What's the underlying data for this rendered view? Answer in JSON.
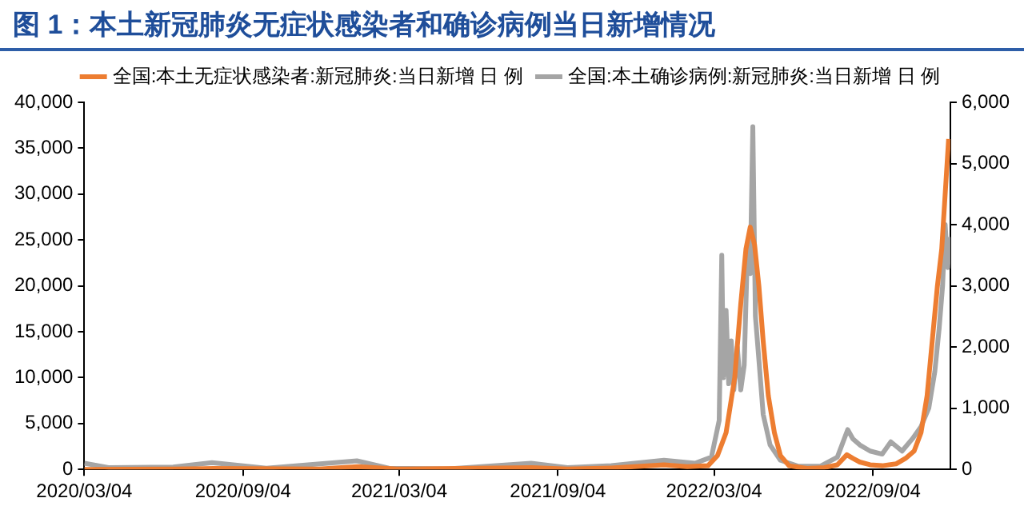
{
  "chart_data": {
    "type": "line",
    "title": "图 1：本土新冠肺炎无症状感染者和确诊病例当日新增情况",
    "legend": "top",
    "grid": false,
    "marker": "none",
    "line_style": "solid",
    "xlim": [
      "2020-03-04",
      "2022-12-03"
    ],
    "xticks": [
      {
        "value": "2020-03-04",
        "label": "2020/03/04"
      },
      {
        "value": "2020-09-04",
        "label": "2020/09/04"
      },
      {
        "value": "2021-03-04",
        "label": "2021/03/04"
      },
      {
        "value": "2021-09-04",
        "label": "2021/09/04"
      },
      {
        "value": "2022-03-04",
        "label": "2022/03/04"
      },
      {
        "value": "2022-09-04",
        "label": "2022/09/04"
      }
    ],
    "ylim": [
      0,
      40000
    ],
    "yticks": [
      0,
      {
        "value": 5000,
        "label": "5,000"
      },
      {
        "value": 10000,
        "label": "10,000"
      },
      {
        "value": 15000,
        "label": "15,000"
      },
      {
        "value": 20000,
        "label": "20,000"
      },
      {
        "value": 25000,
        "label": "25,000"
      },
      {
        "value": 30000,
        "label": "30,000"
      },
      {
        "value": 35000,
        "label": "35,000"
      },
      {
        "value": 40000,
        "label": "40,000"
      }
    ],
    "y2lim": [
      0,
      6000
    ],
    "y2ticks": [
      0,
      {
        "value": 1000,
        "label": "1,000"
      },
      {
        "value": 2000,
        "label": "2,000"
      },
      {
        "value": 3000,
        "label": "3,000"
      },
      {
        "value": 4000,
        "label": "4,000"
      },
      {
        "value": 5000,
        "label": "5,000"
      },
      {
        "value": 6000,
        "label": "6,000"
      }
    ],
    "series": [
      {
        "name": "全国:本土无症状感染者:新冠肺炎:当日新增 日 例",
        "color": "#ed7d31",
        "axis": "y",
        "x": [
          "2020-03-04",
          "2020-06-15",
          "2020-08-01",
          "2020-12-01",
          "2021-01-15",
          "2021-03-01",
          "2021-08-05",
          "2021-09-15",
          "2021-11-05",
          "2022-01-05",
          "2022-02-01",
          "2022-02-25",
          "2022-03-08",
          "2022-03-18",
          "2022-03-28",
          "2022-04-04",
          "2022-04-10",
          "2022-04-15",
          "2022-04-20",
          "2022-04-25",
          "2022-04-30",
          "2022-05-06",
          "2022-05-13",
          "2022-05-20",
          "2022-05-30",
          "2022-06-20",
          "2022-07-10",
          "2022-07-25",
          "2022-08-05",
          "2022-08-12",
          "2022-08-20",
          "2022-09-01",
          "2022-09-15",
          "2022-10-01",
          "2022-10-12",
          "2022-10-22",
          "2022-10-30",
          "2022-11-06",
          "2022-11-12",
          "2022-11-18",
          "2022-11-23",
          "2022-11-27",
          "2022-12-01"
        ],
        "values": [
          0,
          50,
          100,
          50,
          300,
          30,
          200,
          50,
          150,
          500,
          300,
          400,
          1500,
          4000,
          10000,
          18000,
          24000,
          26400,
          24500,
          20000,
          14000,
          8000,
          4000,
          1500,
          400,
          100,
          200,
          500,
          1600,
          1200,
          800,
          500,
          400,
          600,
          1200,
          2000,
          4000,
          8000,
          14000,
          20000,
          24000,
          30000,
          36000
        ]
      },
      {
        "name": "全国:本土确诊病例:新冠肺炎:当日新增 日 例",
        "color": "#a5a5a5",
        "axis": "y2",
        "x": [
          "2020-03-04",
          "2020-04-01",
          "2020-06-15",
          "2020-07-30",
          "2020-10-01",
          "2021-01-14",
          "2021-02-20",
          "2021-05-01",
          "2021-08-04",
          "2021-09-15",
          "2021-11-05",
          "2022-01-05",
          "2022-02-10",
          "2022-03-01",
          "2022-03-10",
          "2022-03-13",
          "2022-03-15",
          "2022-03-18",
          "2022-03-21",
          "2022-03-24",
          "2022-03-27",
          "2022-03-31",
          "2022-04-04",
          "2022-04-08",
          "2022-04-12",
          "2022-04-15",
          "2022-04-18",
          "2022-04-21",
          "2022-04-25",
          "2022-04-30",
          "2022-05-08",
          "2022-05-20",
          "2022-06-10",
          "2022-07-05",
          "2022-07-25",
          "2022-08-06",
          "2022-08-12",
          "2022-08-20",
          "2022-09-01",
          "2022-09-15",
          "2022-09-25",
          "2022-10-08",
          "2022-10-20",
          "2022-10-30",
          "2022-11-08",
          "2022-11-15",
          "2022-11-20",
          "2022-11-24",
          "2022-11-27",
          "2022-11-30",
          "2022-12-02"
        ],
        "values": [
          100,
          30,
          40,
          110,
          20,
          140,
          20,
          10,
          100,
          30,
          60,
          150,
          100,
          200,
          800,
          3500,
          1500,
          2600,
          1400,
          2100,
          1300,
          2000,
          1300,
          1700,
          3700,
          3200,
          5600,
          2500,
          1800,
          900,
          400,
          150,
          50,
          50,
          200,
          650,
          500,
          400,
          300,
          250,
          450,
          300,
          500,
          700,
          1000,
          1600,
          2300,
          3000,
          4000,
          3300,
          3800
        ]
      }
    ]
  }
}
